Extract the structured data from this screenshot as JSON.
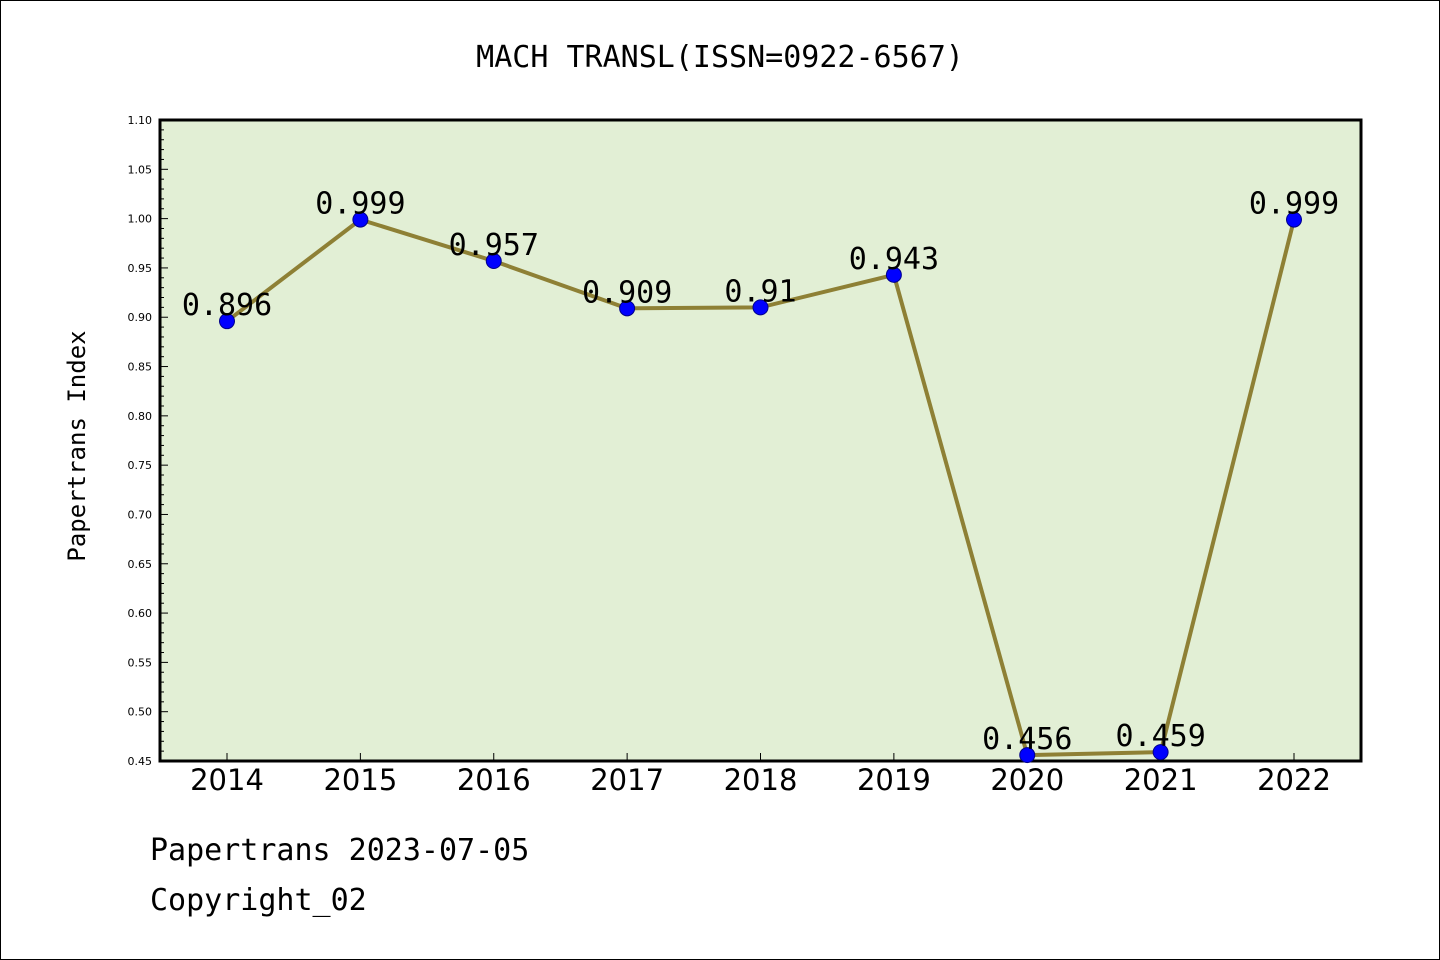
{
  "chart_data": {
    "type": "line",
    "title": "MACH TRANSL(ISSN=0922-6567)",
    "xlabel": "",
    "ylabel": "Papertrans Index",
    "categories": [
      "2014",
      "2015",
      "2016",
      "2017",
      "2018",
      "2019",
      "2020",
      "2021",
      "2022"
    ],
    "values": [
      0.896,
      0.999,
      0.957,
      0.909,
      0.91,
      0.943,
      0.456,
      0.459,
      0.999
    ],
    "value_labels": [
      "0.896",
      "0.999",
      "0.957",
      "0.909",
      "0.91",
      "0.943",
      "0.456",
      "0.459",
      "0.999"
    ],
    "ylim": [
      0.45,
      1.1
    ],
    "yticks": [
      "0.45",
      "0.50",
      "0.55",
      "0.60",
      "0.65",
      "0.70",
      "0.75",
      "0.80",
      "0.85",
      "0.90",
      "0.95",
      "1.00",
      "1.05",
      "1.10"
    ],
    "grid": false,
    "legend": "none",
    "colors": {
      "plot_background": "#e2efd5",
      "line": "#8e8035",
      "marker": "#0000ff",
      "marker_edge": "#00008b"
    }
  },
  "footer": {
    "line1": "Papertrans 2023-07-05",
    "line2": "Copyright_02"
  }
}
